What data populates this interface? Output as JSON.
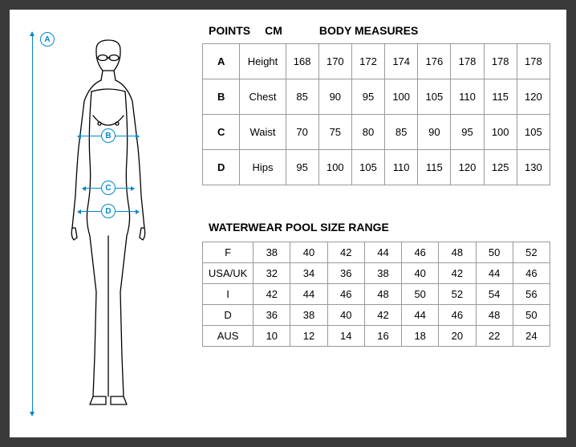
{
  "headers": {
    "points": "POINTS",
    "cm": "CM",
    "body_measures": "BODY MEASURES",
    "pool_range": "WATERWEAR POOL SIZE RANGE"
  },
  "markers": {
    "A": "A",
    "B": "B",
    "C": "C",
    "D": "D"
  },
  "body_table": {
    "rows": [
      {
        "point": "A",
        "label": "Height",
        "values": [
          "168",
          "170",
          "172",
          "174",
          "176",
          "178",
          "178",
          "178"
        ]
      },
      {
        "point": "B",
        "label": "Chest",
        "values": [
          "85",
          "90",
          "95",
          "100",
          "105",
          "110",
          "115",
          "120"
        ]
      },
      {
        "point": "C",
        "label": "Waist",
        "values": [
          "70",
          "75",
          "80",
          "85",
          "90",
          "95",
          "100",
          "105"
        ]
      },
      {
        "point": "D",
        "label": "Hips",
        "values": [
          "95",
          "100",
          "105",
          "110",
          "115",
          "120",
          "125",
          "130"
        ]
      }
    ]
  },
  "size_table": {
    "rows": [
      {
        "label": "F",
        "values": [
          "38",
          "40",
          "42",
          "44",
          "46",
          "48",
          "50",
          "52"
        ]
      },
      {
        "label": "USA/UK",
        "values": [
          "32",
          "34",
          "36",
          "38",
          "40",
          "42",
          "44",
          "46"
        ]
      },
      {
        "label": "I",
        "values": [
          "42",
          "44",
          "46",
          "48",
          "50",
          "52",
          "54",
          "56"
        ]
      },
      {
        "label": "D",
        "values": [
          "36",
          "38",
          "40",
          "42",
          "44",
          "46",
          "48",
          "50"
        ]
      },
      {
        "label": "AUS",
        "values": [
          "10",
          "12",
          "14",
          "16",
          "18",
          "20",
          "22",
          "24"
        ]
      }
    ]
  },
  "colors": {
    "accent": "#0088cc",
    "border": "#999999",
    "background": "#ffffff",
    "page_bg": "#3a3a3a",
    "text": "#000000"
  },
  "figure": {
    "stroke_color": "#000000",
    "stroke_width": 1.3
  }
}
